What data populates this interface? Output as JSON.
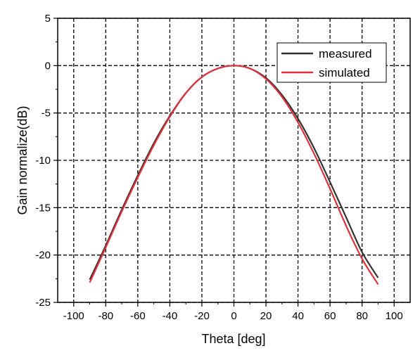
{
  "chart_data": {
    "type": "line",
    "title": "",
    "xlabel": "Theta [deg]",
    "ylabel": "Gain normalize(dB)",
    "xlim": [
      -110,
      110
    ],
    "ylim": [
      -25,
      5
    ],
    "xticks": [
      -100,
      -80,
      -60,
      -40,
      -20,
      0,
      20,
      40,
      60,
      80,
      100
    ],
    "yticks": [
      -25,
      -20,
      -15,
      -10,
      -5,
      0,
      5
    ],
    "grid": true,
    "legend_position": "top-right",
    "series": [
      {
        "name": "measured",
        "color": "#333333",
        "x": [
          -90,
          -80,
          -70,
          -60,
          -50,
          -40,
          -30,
          -20,
          -10,
          0,
          10,
          20,
          30,
          40,
          50,
          60,
          70,
          80,
          90
        ],
        "y": [
          -22.6,
          -19.0,
          -15.2,
          -11.6,
          -8.2,
          -5.3,
          -2.9,
          -1.2,
          -0.3,
          0.0,
          -0.3,
          -1.3,
          -3.1,
          -5.6,
          -8.7,
          -12.3,
          -16.0,
          -19.7,
          -22.4
        ]
      },
      {
        "name": "simulated",
        "color": "#e0303a",
        "x": [
          -90,
          -80,
          -70,
          -60,
          -50,
          -40,
          -30,
          -20,
          -10,
          0,
          10,
          20,
          30,
          40,
          50,
          60,
          70,
          80,
          90
        ],
        "y": [
          -22.9,
          -19.2,
          -15.4,
          -11.8,
          -8.4,
          -5.4,
          -2.9,
          -1.2,
          -0.3,
          0.0,
          -0.3,
          -1.4,
          -3.3,
          -6.0,
          -9.3,
          -13.0,
          -16.9,
          -20.4,
          -23.1
        ]
      }
    ]
  }
}
